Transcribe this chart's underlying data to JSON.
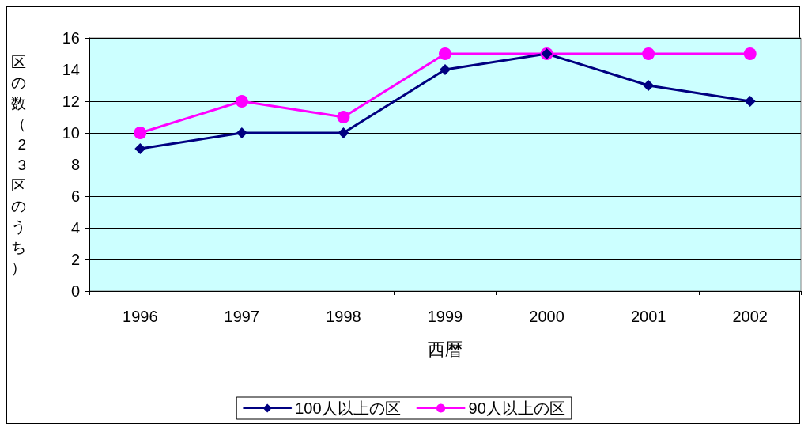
{
  "chart_data": {
    "type": "line",
    "xlabel": "西暦",
    "ylabel": "区の数（23区のうち）",
    "categories": [
      "1996",
      "1997",
      "1998",
      "1999",
      "2000",
      "2001",
      "2002"
    ],
    "series": [
      {
        "name": "100人以上の区",
        "color": "#000080",
        "marker": "diamond",
        "values": [
          9,
          10,
          10,
          14,
          15,
          13,
          12
        ]
      },
      {
        "name": "90人以上の区",
        "color": "#ff00ff",
        "marker": "circle",
        "values": [
          10,
          12,
          11,
          15,
          15,
          15,
          15
        ]
      }
    ],
    "ylim": [
      0,
      16
    ],
    "yticks": [
      0,
      2,
      4,
      6,
      8,
      10,
      12,
      14,
      16
    ],
    "grid": "y",
    "legend": "bottom",
    "line_style": "solid"
  }
}
